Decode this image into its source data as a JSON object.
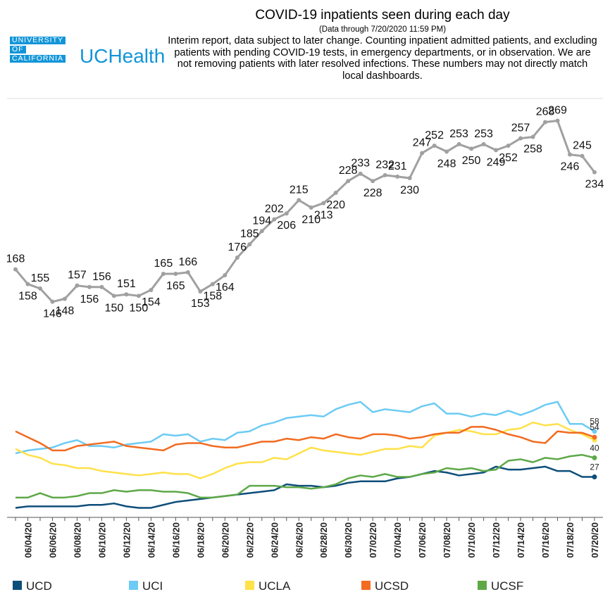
{
  "header": {
    "logo": [
      "UNIVERSITY",
      "OF",
      "CALIFORNIA"
    ],
    "brand": "UCHealth"
  },
  "chart_data": {
    "type": "line",
    "title": "COVID-19 inpatients seen during each day",
    "subtitle": "(Data through 7/20/2020 11:59 PM)",
    "note": "Interim report, data subject to later change. Counting inpatient admitted patients, and excluding patients with pending COVID-19 tests, in emergency departments, or in observation. We are not removing patients with later resolved infections. These numbers may not directly match local dashboards.",
    "categories": [
      null,
      "06/04/20",
      null,
      "06/06/20",
      null,
      "06/08/20",
      null,
      "06/10/20",
      null,
      "06/12/20",
      null,
      "06/14/20",
      null,
      "06/16/20",
      null,
      "06/18/20",
      null,
      "06/20/20",
      null,
      "06/22/20",
      null,
      "06/24/20",
      null,
      "06/26/20",
      null,
      "06/28/20",
      null,
      "06/30/20",
      null,
      "07/02/20",
      null,
      "07/04/20",
      null,
      "07/06/20",
      null,
      "07/08/20",
      null,
      "07/10/20",
      null,
      "07/12/20",
      null,
      "07/14/20",
      null,
      "07/16/20",
      null,
      "07/18/20",
      null,
      "07/20/20"
    ],
    "total": {
      "color": "#a0a0a0",
      "values": [
        168,
        158,
        155,
        146,
        148,
        157,
        156,
        156,
        150,
        151,
        150,
        154,
        165,
        165,
        166,
        153,
        158,
        164,
        176,
        185,
        194,
        202,
        206,
        215,
        210,
        213,
        220,
        228,
        233,
        228,
        232,
        231,
        230,
        247,
        252,
        248,
        253,
        250,
        253,
        249,
        252,
        257,
        258,
        268,
        269,
        246,
        245,
        234
      ]
    },
    "series": [
      {
        "name": "UCD",
        "color": "#0d4e7a",
        "label_last": true,
        "values": [
          6,
          7,
          7,
          7,
          7,
          7,
          8,
          8,
          9,
          7,
          6,
          6,
          8,
          10,
          11,
          12,
          13,
          14,
          15,
          16,
          17,
          18,
          22,
          21,
          21,
          20,
          21,
          23,
          24,
          24,
          24,
          26,
          27,
          29,
          31,
          30,
          28,
          29,
          30,
          34,
          32,
          32,
          33,
          34,
          31,
          31,
          27,
          27
        ]
      },
      {
        "name": "UCI",
        "color": "#6ccbf4",
        "label_last": true,
        "values": [
          43,
          45,
          46,
          47,
          50,
          52,
          48,
          48,
          47,
          49,
          50,
          51,
          56,
          55,
          56,
          51,
          53,
          52,
          57,
          58,
          62,
          64,
          67,
          68,
          69,
          68,
          73,
          76,
          78,
          71,
          73,
          72,
          71,
          75,
          77,
          70,
          70,
          68,
          70,
          69,
          72,
          69,
          72,
          76,
          78,
          63,
          63,
          58
        ]
      },
      {
        "name": "UCLA",
        "color": "#ffe149",
        "label_last": false,
        "values": [
          46,
          42,
          40,
          36,
          35,
          33,
          33,
          31,
          30,
          29,
          28,
          29,
          30,
          29,
          29,
          26,
          29,
          33,
          36,
          37,
          37,
          40,
          39,
          43,
          47,
          45,
          44,
          43,
          42,
          44,
          46,
          46,
          48,
          47,
          55,
          57,
          59,
          58,
          56,
          56,
          59,
          60,
          64,
          62,
          63,
          59,
          56,
          52
        ]
      },
      {
        "name": "UCSD",
        "color": "#f26b21",
        "label_last": true,
        "values": [
          58,
          54,
          50,
          45,
          45,
          48,
          49,
          50,
          51,
          48,
          47,
          46,
          45,
          49,
          50,
          50,
          48,
          47,
          47,
          49,
          51,
          51,
          53,
          52,
          54,
          53,
          56,
          54,
          53,
          56,
          56,
          55,
          53,
          54,
          56,
          57,
          57,
          61,
          61,
          59,
          56,
          54,
          51,
          50,
          58,
          57,
          57,
          54
        ]
      },
      {
        "name": "UCSF",
        "color": "#5ea848",
        "label_last": true,
        "values": [
          13,
          13,
          16,
          13,
          13,
          14,
          16,
          16,
          18,
          17,
          18,
          18,
          17,
          17,
          16,
          13,
          13,
          14,
          15,
          21,
          21,
          21,
          20,
          20,
          19,
          20,
          22,
          26,
          28,
          27,
          29,
          27,
          27,
          29,
          30,
          33,
          32,
          33,
          31,
          32,
          38,
          39,
          37,
          40,
          39,
          41,
          42,
          40
        ]
      }
    ],
    "ylim": [
      0,
      285
    ]
  }
}
